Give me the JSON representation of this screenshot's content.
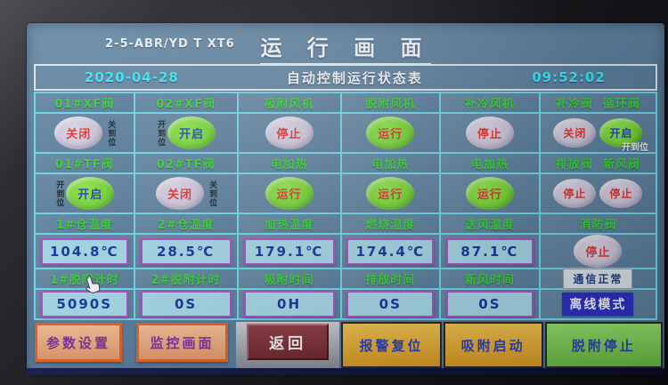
{
  "title_bar": {
    "device_id": "2-5-ABR/YD T XT6",
    "title": "运 行 画 面"
  },
  "status_bar": {
    "date": "2020-04-28",
    "title": "自动控制运行状态表",
    "time": "09:52:02"
  },
  "cursor": {
    "icon": "hand-pointer",
    "over_cell": "1#脱附计时"
  },
  "colors": {
    "screen_bg": "#5b7f9e",
    "grid_line": "#6fd6ea",
    "header_green": "#3bd13b",
    "cyan_text": "#3ce9f8",
    "lamp_gray": "#c3bbd4",
    "lamp_green": "#72d632",
    "lamp_text_red": "#e03434",
    "lamp_text_blue": "#2743c9",
    "value_bg": "#a5d8e8",
    "value_border": "#b14cc8",
    "value_text": "#16369c",
    "offline_badge_bg": "#2b2fc4",
    "comm_badge_bg": "#d9e3ea",
    "btn_peach": "#e8a87c",
    "btn_peach_border": "#df5f28",
    "btn_maroon": "#7a2f38",
    "btn_amber": "#e2a836",
    "btn_green": "#7ccc54"
  },
  "table": {
    "rows": [
      {
        "cells": [
          {
            "header": "01#XF阀",
            "type": "lamp",
            "lamps": [
              {
                "label": "关闭",
                "color": "gray",
                "text": "red"
              }
            ],
            "side_label": "关到位",
            "side": "right"
          },
          {
            "header": "02#XF阀",
            "type": "lamp",
            "lamps": [
              {
                "label": "开启",
                "color": "green",
                "text": "blue"
              }
            ],
            "side_label": "开到位",
            "side": "left"
          },
          {
            "header": "吸附风机",
            "type": "lamp",
            "lamps": [
              {
                "label": "停止",
                "color": "gray",
                "text": "red"
              }
            ]
          },
          {
            "header": "脱附风机",
            "type": "lamp",
            "lamps": [
              {
                "label": "运行",
                "color": "green",
                "text": "red"
              }
            ]
          },
          {
            "header": "补冷风机",
            "type": "lamp",
            "lamps": [
              {
                "label": "停止",
                "color": "gray",
                "text": "red"
              }
            ]
          },
          {
            "header": "补冷阀  循环阀",
            "type": "lamp",
            "lamps": [
              {
                "label": "关闭",
                "color": "gray",
                "text": "red"
              },
              {
                "label": "开启",
                "color": "green",
                "text": "blue"
              }
            ],
            "sub_label": "开到位"
          }
        ]
      },
      {
        "cells": [
          {
            "header": "01#TF阀",
            "type": "lamp",
            "lamps": [
              {
                "label": "开启",
                "color": "green",
                "text": "blue"
              }
            ],
            "side_label": "开到位",
            "side": "left"
          },
          {
            "header": "02#TF阀",
            "type": "lamp",
            "lamps": [
              {
                "label": "关闭",
                "color": "gray",
                "text": "red"
              }
            ],
            "side_label": "关到位",
            "side": "right"
          },
          {
            "header": "电加热",
            "type": "lamp",
            "lamps": [
              {
                "label": "运行",
                "color": "green",
                "text": "red"
              }
            ]
          },
          {
            "header": "电加热",
            "type": "lamp",
            "lamps": [
              {
                "label": "运行",
                "color": "green",
                "text": "red"
              }
            ]
          },
          {
            "header": "电加热",
            "type": "lamp",
            "lamps": [
              {
                "label": "运行",
                "color": "green",
                "text": "red"
              }
            ]
          },
          {
            "header": "排放阀  新风阀",
            "type": "lamp",
            "lamps": [
              {
                "label": "停止",
                "color": "gray",
                "text": "red"
              },
              {
                "label": "停止",
                "color": "gray",
                "text": "red"
              }
            ]
          }
        ]
      },
      {
        "cells": [
          {
            "header": "1#仓温度",
            "type": "value",
            "value": "104.8℃"
          },
          {
            "header": "2#仓温度",
            "type": "value",
            "value": "28.5℃"
          },
          {
            "header": "加热温度",
            "type": "value",
            "value": "179.1℃"
          },
          {
            "header": "燃烧温度",
            "type": "value",
            "value": "174.4℃"
          },
          {
            "header": "送风温度",
            "type": "value",
            "value": "87.1℃"
          },
          {
            "header": "消防阀",
            "type": "lamp",
            "lamps": [
              {
                "label": "停止",
                "color": "gray",
                "text": "red"
              }
            ]
          }
        ]
      },
      {
        "cells": [
          {
            "header": "1#脱附计时",
            "type": "value",
            "value": "5090S",
            "cursor": true
          },
          {
            "header": "2#脱附计时",
            "type": "value",
            "value": "0S"
          },
          {
            "header": "吸附时间",
            "type": "value",
            "value": "0H"
          },
          {
            "header": "排放时间",
            "type": "value",
            "value": "0S"
          },
          {
            "header": "新风时间",
            "type": "value",
            "value": "0S"
          },
          {
            "type": "badges",
            "badge_top": "通信正常",
            "badge_bottom": "离线模式"
          }
        ]
      }
    ]
  },
  "buttons": [
    {
      "label": "参数设置",
      "style": "peach"
    },
    {
      "label": "监控画面",
      "style": "peach"
    },
    {
      "label": "返回",
      "style": "maroon"
    },
    {
      "label": "报警复位",
      "style": "amber"
    },
    {
      "label": "吸附启动",
      "style": "amber"
    },
    {
      "label": "脱附停止",
      "style": "green"
    }
  ]
}
